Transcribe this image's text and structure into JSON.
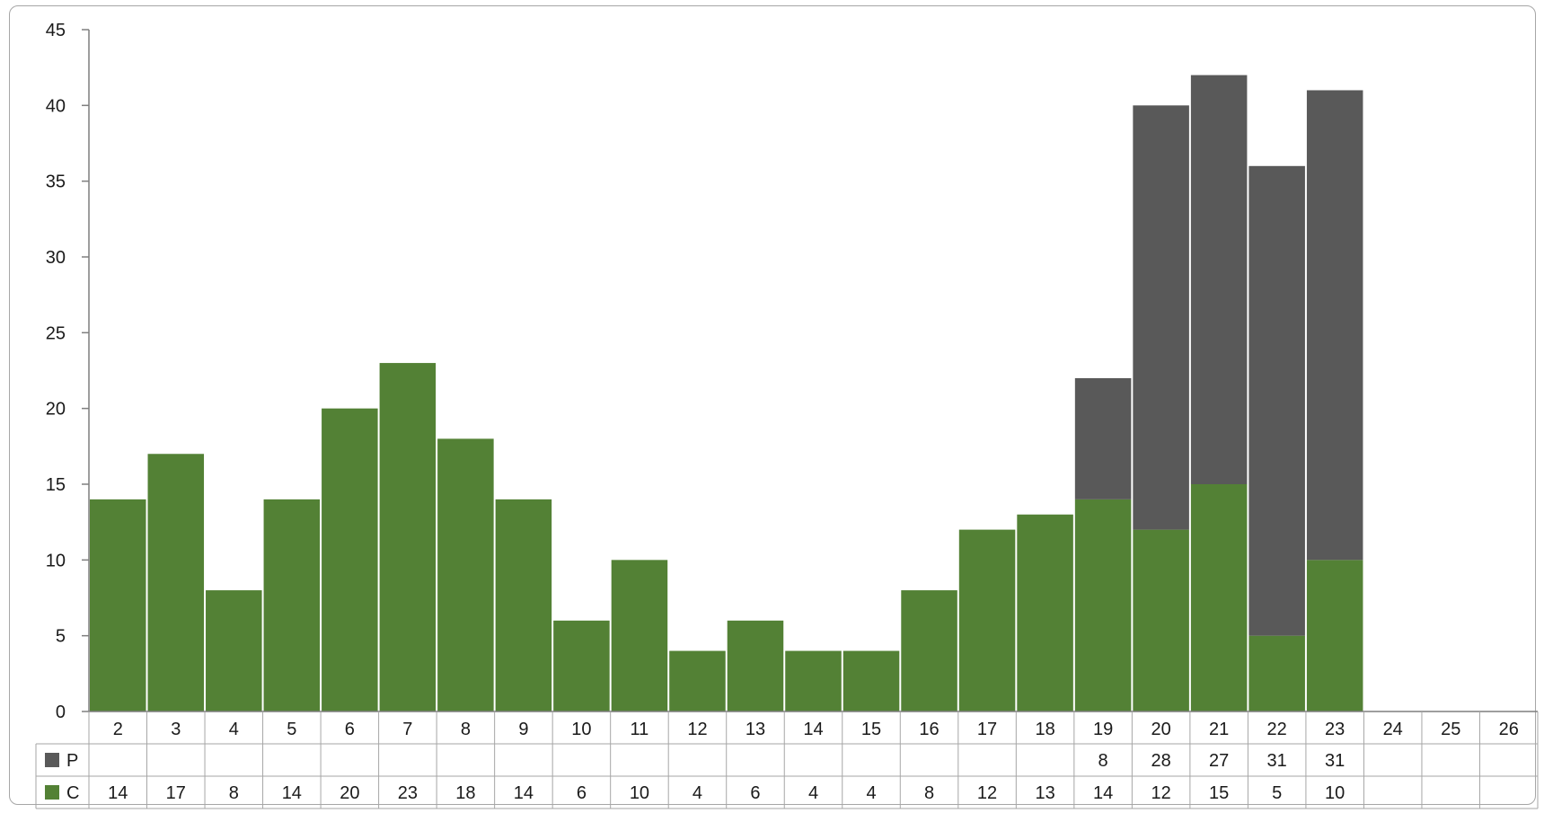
{
  "chart_data": {
    "type": "bar",
    "stacked": true,
    "with_data_table": true,
    "categories": [
      "2",
      "3",
      "4",
      "5",
      "6",
      "7",
      "8",
      "9",
      "10",
      "11",
      "12",
      "13",
      "14",
      "15",
      "16",
      "17",
      "18",
      "19",
      "20",
      "21",
      "22",
      "23",
      "24",
      "25",
      "26"
    ],
    "series": [
      {
        "name": "C",
        "color": "#538135",
        "values": [
          14,
          17,
          8,
          14,
          20,
          23,
          18,
          14,
          6,
          10,
          4,
          6,
          4,
          4,
          8,
          12,
          13,
          14,
          12,
          15,
          5,
          10,
          null,
          null,
          null
        ]
      },
      {
        "name": "P",
        "color": "#595959",
        "values": [
          null,
          null,
          null,
          null,
          null,
          null,
          null,
          null,
          null,
          null,
          null,
          null,
          null,
          null,
          null,
          null,
          null,
          8,
          28,
          27,
          31,
          31,
          null,
          null,
          null
        ]
      }
    ],
    "ylim": [
      0,
      45
    ],
    "yticks": [
      0,
      5,
      10,
      15,
      20,
      25,
      30,
      35,
      40,
      45
    ],
    "grid": false,
    "legend": "data-table-rows"
  }
}
